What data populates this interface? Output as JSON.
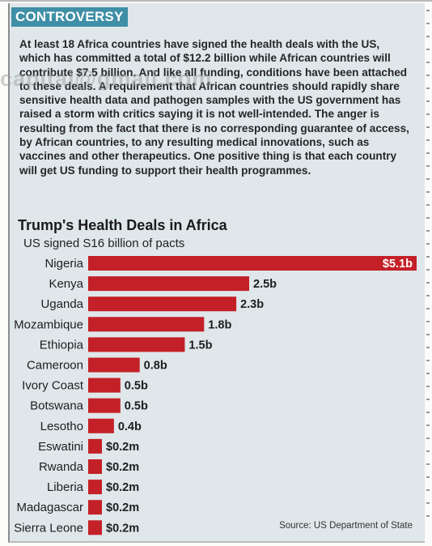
{
  "section_tag": "CONTROVERSY",
  "watermark": "capital@gmail.com",
  "paragraph": "At least 18 Africa countries have signed the health deals with the US, which has committed a total of $12.2 billion while African countries will contribute $7.5 billion. And like all funding, conditions have been attached to these deals. A requirement that African countries should rapidly share sensitive health data and pathogen samples with the US government has raised a storm with critics saying it is not well-intended. The anger is resulting from the fact that there is no corresponding guarantee of access, by African countries, to any resulting medical innovations, such as vaccines and other therapeutics. One positive thing is that each country will get US funding to support their health programmes.",
  "source": "Source: US Department of State",
  "colors": {
    "bar": "#c42027",
    "tag_bg": "#3f8fa6",
    "box_bg": "#dfe7ea"
  },
  "chart_data": {
    "type": "bar",
    "orientation": "horizontal",
    "title": "Trump's Health Deals in Africa",
    "subtitle": "US signed S16 billion of pacts",
    "categories": [
      "Nigeria",
      "Kenya",
      "Uganda",
      "Mozambique",
      "Ethiopia",
      "Cameroon",
      "Ivory Coast",
      "Botswana",
      "Lesotho",
      "Eswatini",
      "Rwanda",
      "Liberia",
      "Madagascar",
      "Sierra Leone"
    ],
    "values": [
      5.1,
      2.5,
      2.3,
      1.8,
      1.5,
      0.8,
      0.5,
      0.5,
      0.4,
      0.0002,
      0.0002,
      0.0002,
      0.0002,
      0.0002
    ],
    "labels": [
      "$5.1b",
      "2.5b",
      "2.3b",
      "1.8b",
      "1.5b",
      "0.8b",
      "0.5b",
      "0.5b",
      "0.4b",
      "$0.2m",
      "$0.2m",
      "$0.2m",
      "$0.2m",
      "$0.2m"
    ],
    "units": "US$ billions",
    "grid": false,
    "legend": "none"
  }
}
